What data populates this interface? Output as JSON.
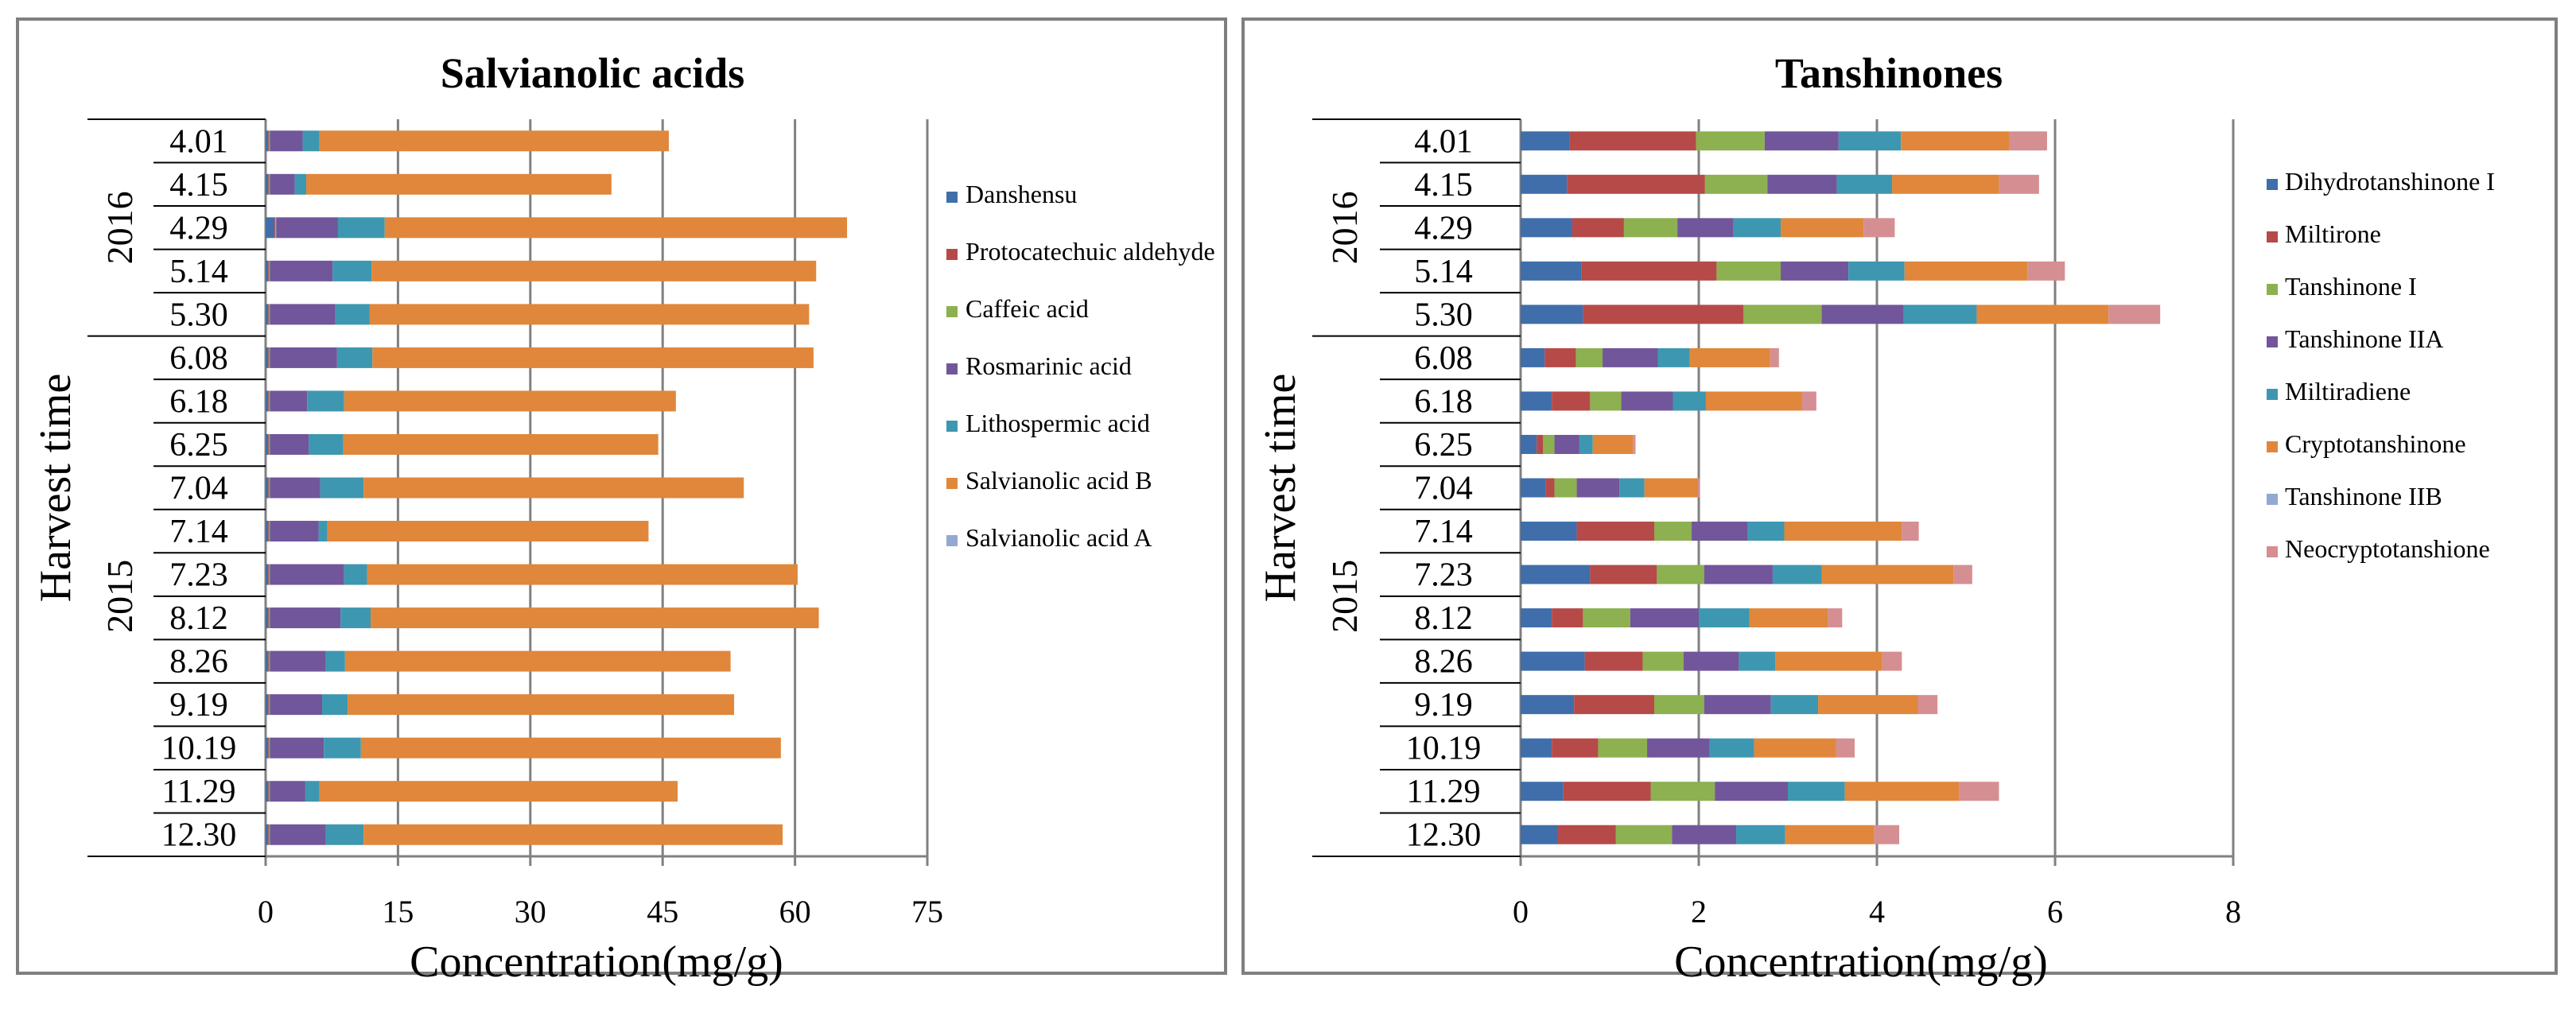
{
  "chart_data": [
    {
      "type": "bar",
      "orientation": "horizontal",
      "stacked": true,
      "title": "Salvianolic acids",
      "xlabel": "Concentration(mg/g)",
      "ylabel": "Harvest time",
      "xlim": [
        0,
        75
      ],
      "xticks": [
        "0",
        "15",
        "30",
        "45",
        "60",
        "75"
      ],
      "grid": "vertical",
      "legend_position": "right",
      "groups": [
        {
          "label": "2016",
          "categories": [
            "4.01",
            "4.15",
            "4.29",
            "5.14",
            "5.30"
          ]
        },
        {
          "label": "2015",
          "categories": [
            "6.08",
            "6.18",
            "6.25",
            "7.04",
            "7.14",
            "7.23",
            "8.12",
            "8.26",
            "9.19",
            "10.19",
            "11.29",
            "12.30"
          ]
        }
      ],
      "categories": [
        "4.01",
        "4.15",
        "4.29",
        "5.14",
        "5.30",
        "6.08",
        "6.18",
        "6.25",
        "7.04",
        "7.14",
        "7.23",
        "8.12",
        "8.26",
        "9.19",
        "10.19",
        "11.29",
        "12.30"
      ],
      "series": [
        {
          "name": "Danshensu",
          "color": "#3f6eab",
          "values": [
            0.3,
            0.3,
            1.0,
            0.3,
            0.3,
            0.3,
            0.3,
            0.3,
            0.3,
            0.3,
            0.3,
            0.3,
            0.3,
            0.3,
            0.3,
            0.3,
            0.3
          ]
        },
        {
          "name": "Protocatechuic aldehyde",
          "color": "#b64a48",
          "values": [
            0.1,
            0.1,
            0.1,
            0.1,
            0.1,
            0.1,
            0.1,
            0.1,
            0.1,
            0.1,
            0.1,
            0.1,
            0.1,
            0.1,
            0.1,
            0.1,
            0.1
          ]
        },
        {
          "name": "Caffeic acid",
          "color": "#8db050",
          "values": [
            0.1,
            0.1,
            0.1,
            0.1,
            0.1,
            0.1,
            0.1,
            0.1,
            0.1,
            0.1,
            0.1,
            0.1,
            0.1,
            0.1,
            0.1,
            0.1,
            0.1
          ]
        },
        {
          "name": "Rosmarinic acid",
          "color": "#71569b",
          "values": [
            3.7,
            2.8,
            7.0,
            7.1,
            7.4,
            7.6,
            4.2,
            4.4,
            5.7,
            5.5,
            8.4,
            8.0,
            6.3,
            5.9,
            6.1,
            4.0,
            6.3
          ]
        },
        {
          "name": "Lithospermic acid",
          "color": "#3e97b0",
          "values": [
            1.9,
            1.3,
            5.3,
            4.4,
            3.9,
            4.0,
            4.2,
            3.9,
            4.9,
            1.0,
            2.6,
            3.4,
            2.2,
            2.9,
            4.2,
            1.6,
            4.3
          ]
        },
        {
          "name": "Salvianolic acid B",
          "color": "#e0873b",
          "values": [
            39.6,
            34.6,
            52.4,
            50.4,
            49.8,
            50.0,
            37.6,
            35.7,
            43.1,
            36.4,
            48.8,
            50.8,
            43.7,
            43.8,
            47.6,
            40.6,
            47.5
          ]
        },
        {
          "name": "Salvianolic acid A",
          "color": "#93a9d2",
          "values": [
            0,
            0,
            0,
            0,
            0,
            0,
            0,
            0,
            0,
            0,
            0,
            0,
            0,
            0,
            0,
            0,
            0
          ]
        }
      ]
    },
    {
      "type": "bar",
      "orientation": "horizontal",
      "stacked": true,
      "title": "Tanshinones",
      "xlabel": "Concentration(mg/g)",
      "ylabel": "Harvest time",
      "xlim": [
        0,
        8
      ],
      "xticks": [
        "0",
        "2",
        "4",
        "6",
        "8"
      ],
      "grid": "vertical",
      "legend_position": "right",
      "groups": [
        {
          "label": "2016",
          "categories": [
            "4.01",
            "4.15",
            "4.29",
            "5.14",
            "5.30"
          ]
        },
        {
          "label": "2015",
          "categories": [
            "6.08",
            "6.18",
            "6.25",
            "7.04",
            "7.14",
            "7.23",
            "8.12",
            "8.26",
            "9.19",
            "10.19",
            "11.29",
            "12.30"
          ]
        }
      ],
      "categories": [
        "4.01",
        "4.15",
        "4.29",
        "5.14",
        "5.30",
        "6.08",
        "6.18",
        "6.25",
        "7.04",
        "7.14",
        "7.23",
        "8.12",
        "8.26",
        "9.19",
        "10.19",
        "11.29",
        "12.30"
      ],
      "series": [
        {
          "name": "Dihydrotanshinone I",
          "color": "#3f6eab",
          "values": [
            0.55,
            0.52,
            0.58,
            0.68,
            0.7,
            0.27,
            0.35,
            0.18,
            0.28,
            0.63,
            0.78,
            0.35,
            0.72,
            0.6,
            0.35,
            0.48,
            0.42
          ]
        },
        {
          "name": "Miltirone",
          "color": "#b64a48",
          "values": [
            1.42,
            1.55,
            0.58,
            1.52,
            1.8,
            0.35,
            0.43,
            0.07,
            0.1,
            0.87,
            0.75,
            0.35,
            0.65,
            0.9,
            0.52,
            0.98,
            0.65
          ]
        },
        {
          "name": "Tanshinone I",
          "color": "#8db050",
          "values": [
            0.77,
            0.7,
            0.6,
            0.72,
            0.88,
            0.3,
            0.35,
            0.13,
            0.25,
            0.42,
            0.53,
            0.53,
            0.46,
            0.56,
            0.55,
            0.72,
            0.63
          ]
        },
        {
          "name": "Tanshinone IIA",
          "color": "#71569b",
          "values": [
            0.83,
            0.78,
            0.63,
            0.76,
            0.92,
            0.62,
            0.58,
            0.28,
            0.48,
            0.63,
            0.77,
            0.77,
            0.62,
            0.75,
            0.7,
            0.82,
            0.72
          ]
        },
        {
          "name": "Miltiradiene",
          "color": "#3e97b0",
          "values": [
            0.7,
            0.62,
            0.53,
            0.63,
            0.82,
            0.36,
            0.37,
            0.15,
            0.28,
            0.41,
            0.55,
            0.57,
            0.41,
            0.53,
            0.5,
            0.64,
            0.55
          ]
        },
        {
          "name": "Cryptotanshinone",
          "color": "#e0873b",
          "values": [
            1.22,
            1.2,
            0.93,
            1.38,
            1.48,
            0.9,
            1.08,
            0.45,
            0.6,
            1.32,
            1.48,
            0.88,
            1.2,
            1.12,
            0.92,
            1.28,
            1.0
          ]
        },
        {
          "name": "Tanshinone IIB",
          "color": "#93a9d2",
          "values": [
            0,
            0,
            0,
            0,
            0,
            0,
            0,
            0,
            0,
            0,
            0,
            0,
            0,
            0,
            0,
            0,
            0
          ]
        },
        {
          "name": "Neocryptotanshione",
          "color": "#d58f92",
          "values": [
            0.42,
            0.45,
            0.35,
            0.42,
            0.58,
            0.1,
            0.16,
            0.03,
            0.02,
            0.19,
            0.21,
            0.16,
            0.22,
            0.22,
            0.21,
            0.45,
            0.28
          ]
        }
      ]
    }
  ]
}
